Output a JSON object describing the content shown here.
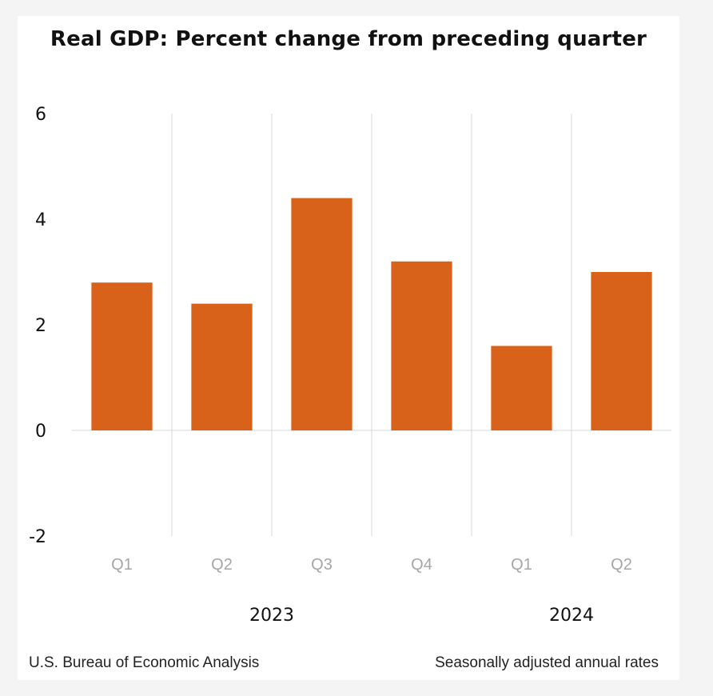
{
  "chart_data": {
    "type": "bar",
    "title": "Real GDP:  Percent change from preceding quarter",
    "categories": [
      "Q1",
      "Q2",
      "Q3",
      "Q4",
      "Q1",
      "Q2"
    ],
    "groups": [
      {
        "label": "2023",
        "categories": [
          "Q1",
          "Q2",
          "Q3",
          "Q4"
        ]
      },
      {
        "label": "2024",
        "categories": [
          "Q1",
          "Q2"
        ]
      }
    ],
    "series": [
      {
        "name": "Real GDP percent change",
        "values": [
          2.8,
          2.4,
          4.4,
          3.2,
          1.6,
          3.0
        ]
      }
    ],
    "ylim": [
      -2,
      6
    ],
    "yticks": [
      "-2",
      "0",
      "2",
      "4",
      "6"
    ],
    "xlabel": "",
    "ylabel": "",
    "grid": "vertical",
    "legend": "none",
    "colors": {
      "bar": "#d9621a",
      "grid": "#d9d9d9",
      "tick": "#a6a6a6"
    }
  },
  "footer": {
    "source": "U.S. Bureau of Economic Analysis",
    "note": "Seasonally adjusted annual rates"
  }
}
